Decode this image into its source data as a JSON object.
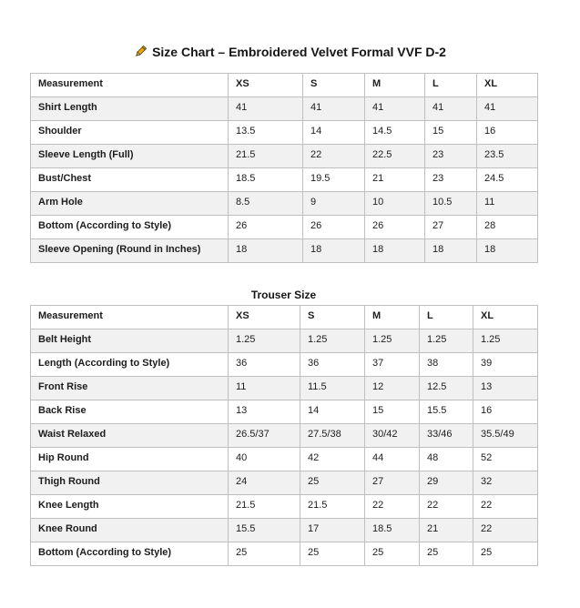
{
  "page": {
    "title": "Size Chart – Embroidered Velvet Formal VVF D-2",
    "title_icon": "pencil-icon"
  },
  "colors": {
    "text": "#1d1d1f",
    "table_border": "#bfbfbf",
    "shaded_row": "#f1f1f1",
    "pencil_gold": "#e8a617",
    "background": "#ffffff"
  },
  "shirt_size_table": {
    "columns": [
      "Measurement",
      "XS",
      "S",
      "M",
      "L",
      "XL"
    ],
    "rows": [
      {
        "label": "Shirt Length",
        "values": [
          "41",
          "41",
          "41",
          "41",
          "41"
        ]
      },
      {
        "label": "Shoulder",
        "values": [
          "13.5",
          "14",
          "14.5",
          "15",
          "16"
        ]
      },
      {
        "label": "Sleeve Length (Full)",
        "values": [
          "21.5",
          "22",
          "22.5",
          "23",
          "23.5"
        ]
      },
      {
        "label": "Bust/Chest",
        "values": [
          "18.5",
          "19.5",
          "21",
          "23",
          "24.5"
        ]
      },
      {
        "label": "Arm Hole",
        "values": [
          "8.5",
          "9",
          "10",
          "10.5",
          "11"
        ]
      },
      {
        "label": "Bottom (According to Style)",
        "values": [
          "26",
          "26",
          "26",
          "27",
          "28"
        ]
      },
      {
        "label": "Sleeve Opening (Round in Inches)",
        "values": [
          "18",
          "18",
          "18",
          "18",
          "18"
        ]
      }
    ]
  },
  "trouser_size_table": {
    "title": "Trouser Size",
    "columns": [
      "Measurement",
      "XS",
      "S",
      "M",
      "L",
      "XL"
    ],
    "rows": [
      {
        "label": "Belt Height",
        "values": [
          "1.25",
          "1.25",
          "1.25",
          "1.25",
          "1.25"
        ]
      },
      {
        "label": "Length (According to Style)",
        "values": [
          "36",
          "36",
          "37",
          "38",
          "39"
        ]
      },
      {
        "label": "Front Rise",
        "values": [
          "11",
          "11.5",
          "12",
          "12.5",
          "13"
        ]
      },
      {
        "label": "Back Rise",
        "values": [
          "13",
          "14",
          "15",
          "15.5",
          "16"
        ]
      },
      {
        "label": "Waist Relaxed",
        "values": [
          "26.5/37",
          "27.5/38",
          "30/42",
          "33/46",
          "35.5/49"
        ]
      },
      {
        "label": "Hip Round",
        "values": [
          "40",
          "42",
          "44",
          "48",
          "52"
        ]
      },
      {
        "label": "Thigh Round",
        "values": [
          "24",
          "25",
          "27",
          "29",
          "32"
        ]
      },
      {
        "label": "Knee Length",
        "values": [
          "21.5",
          "21.5",
          "22",
          "22",
          "22"
        ]
      },
      {
        "label": "Knee Round",
        "values": [
          "15.5",
          "17",
          "18.5",
          "21",
          "22"
        ]
      },
      {
        "label": "Bottom (According to Style)",
        "values": [
          "25",
          "25",
          "25",
          "25",
          "25"
        ]
      }
    ]
  }
}
